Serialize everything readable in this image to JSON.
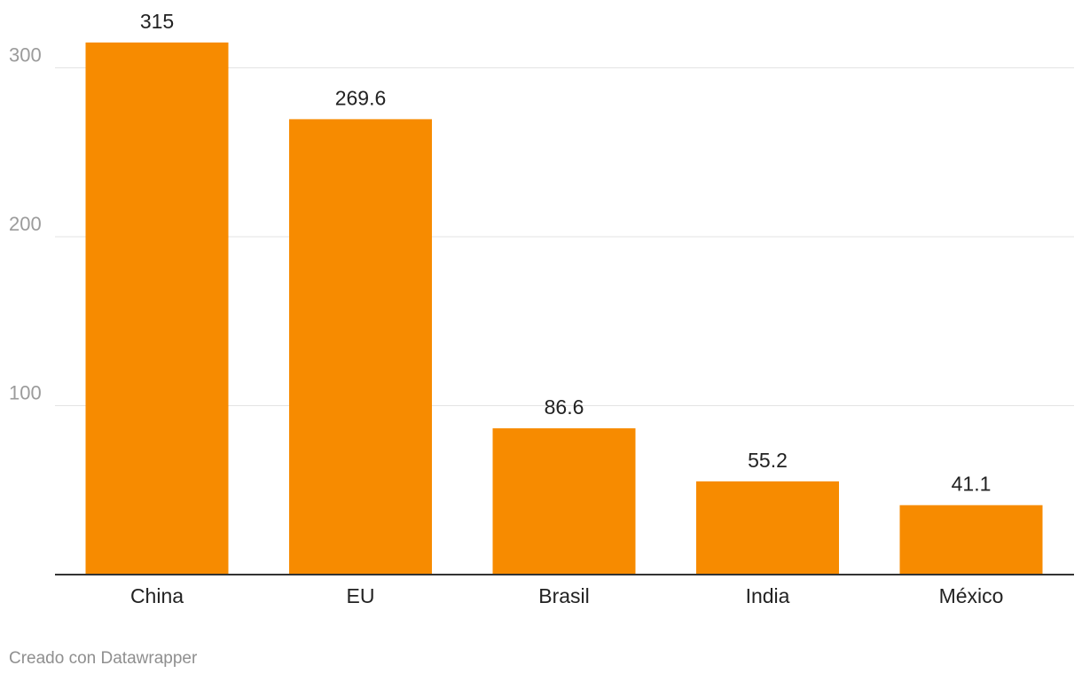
{
  "chart_data": {
    "type": "bar",
    "title": "",
    "xlabel": "",
    "ylabel": "",
    "categories": [
      "China",
      "EU",
      "Brasil",
      "India",
      "México"
    ],
    "values": [
      315,
      269.6,
      86.6,
      55.2,
      41.1
    ],
    "value_labels": [
      "315",
      "269.6",
      "86.6",
      "55.2",
      "41.1"
    ],
    "ylim": [
      0,
      330
    ],
    "yticks": [
      100,
      200,
      300
    ],
    "ytick_labels": [
      "100",
      "200",
      "300"
    ],
    "grid": true,
    "bar_color": "#f78b00"
  },
  "footer": {
    "credit": "Creado con Datawrapper"
  }
}
